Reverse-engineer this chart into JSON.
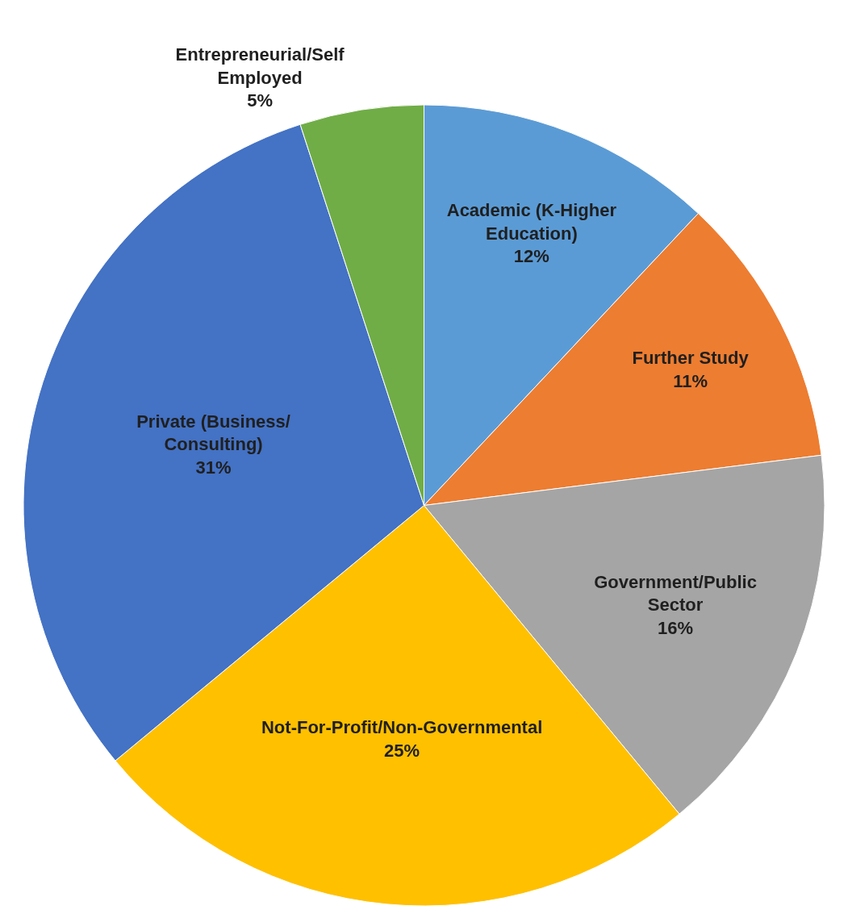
{
  "chart_data": {
    "type": "pie",
    "categories": [
      "Academic (K-Higher Education)",
      "Further Study",
      "Government/Public Sector",
      "Not-For-Profit/Non-Governmental",
      "Private (Business/ Consulting)",
      "Entrepreneurial/Self Employed"
    ],
    "values": [
      12,
      11,
      16,
      25,
      31,
      5
    ],
    "value_labels": [
      "12%",
      "11%",
      "16%",
      "25%",
      "31%",
      "5%"
    ],
    "colors": [
      "#5b9bd5",
      "#ed7d31",
      "#a5a5a5",
      "#ffc000",
      "#4472c4",
      "#70ad47"
    ],
    "legend": false
  }
}
